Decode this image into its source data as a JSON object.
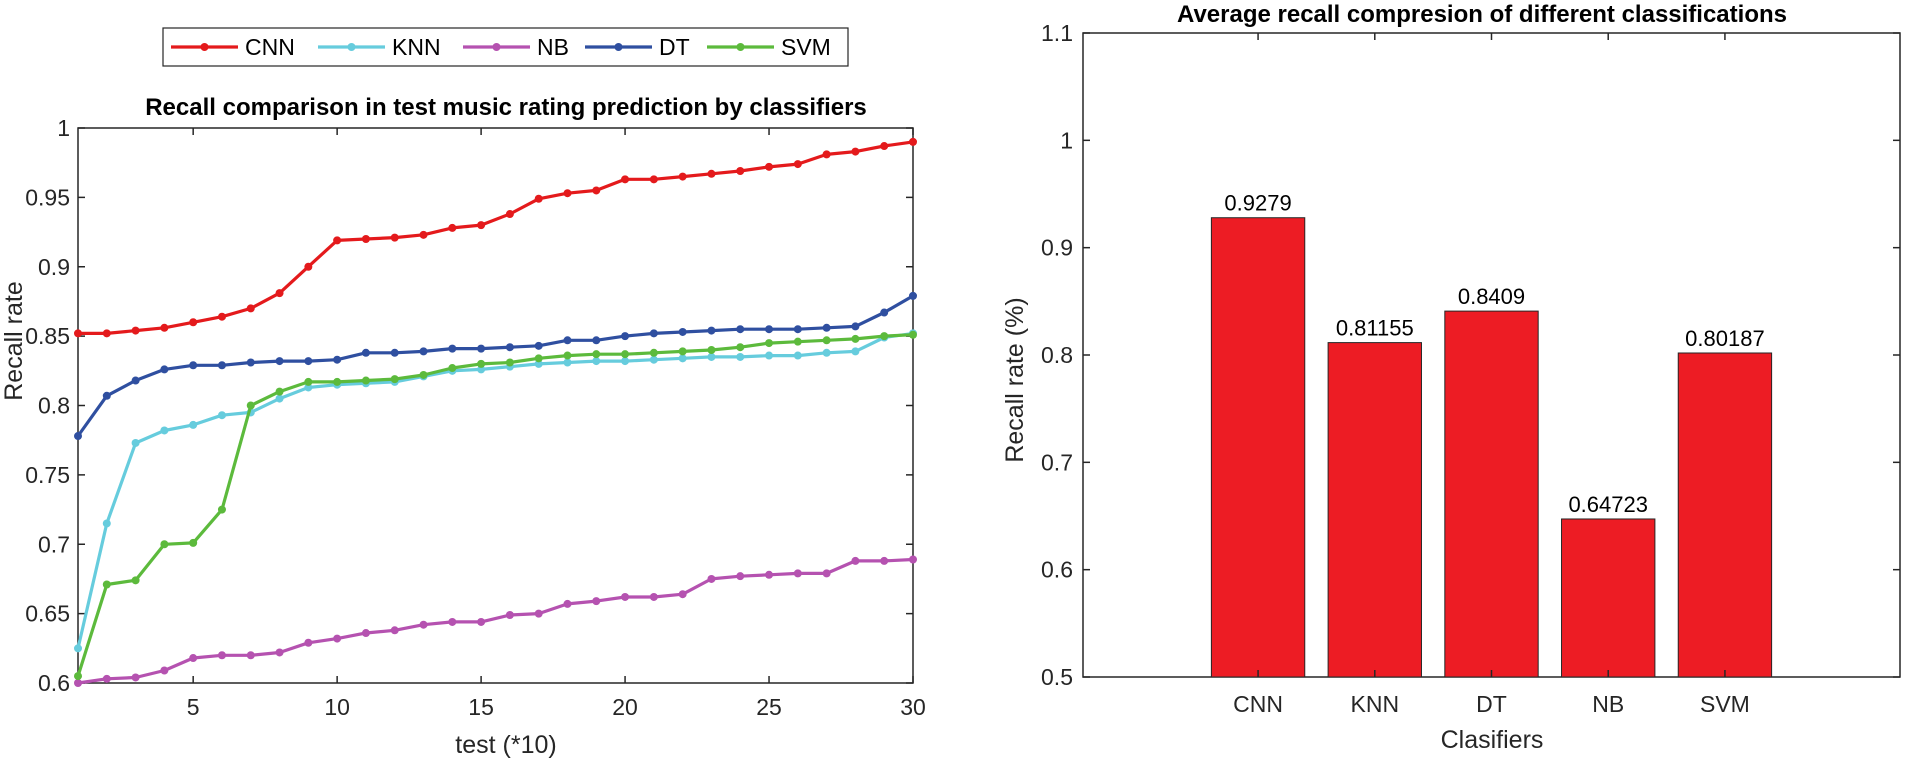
{
  "chart_data": [
    {
      "type": "line",
      "title": "Recall comparison in test music rating prediction by classifiers",
      "xlabel": "test (*10)",
      "ylabel": "Recall rate",
      "xlim": [
        1,
        30
      ],
      "ylim": [
        0.6,
        1.0
      ],
      "xticks": [
        5,
        10,
        15,
        20,
        25,
        30
      ],
      "xtick_labels": [
        "5",
        "10",
        "15",
        "20",
        "25",
        "30"
      ],
      "yticks": [
        0.6,
        0.65,
        0.7,
        0.75,
        0.8,
        0.85,
        0.9,
        0.95,
        1.0
      ],
      "ytick_labels": [
        "0.6",
        "0.65",
        "0.7",
        "0.75",
        "0.8",
        "0.85",
        "0.9",
        "0.95",
        "1"
      ],
      "legend_position": "top, outside, horizontal",
      "grid": false,
      "x": [
        1,
        2,
        3,
        4,
        5,
        6,
        7,
        8,
        9,
        10,
        11,
        12,
        13,
        14,
        15,
        16,
        17,
        18,
        19,
        20,
        21,
        22,
        23,
        24,
        25,
        26,
        27,
        28,
        29,
        30
      ],
      "series": [
        {
          "name": "CNN",
          "color": "#e41a1c",
          "values": [
            0.852,
            0.852,
            0.854,
            0.856,
            0.86,
            0.864,
            0.87,
            0.881,
            0.9,
            0.919,
            0.92,
            0.921,
            0.923,
            0.928,
            0.93,
            0.938,
            0.949,
            0.953,
            0.955,
            0.963,
            0.963,
            0.965,
            0.967,
            0.969,
            0.972,
            0.974,
            0.981,
            0.983,
            0.987,
            0.99
          ]
        },
        {
          "name": "KNN",
          "color": "#66ccdd",
          "values": [
            0.625,
            0.715,
            0.773,
            0.782,
            0.786,
            0.793,
            0.795,
            0.805,
            0.813,
            0.815,
            0.816,
            0.817,
            0.821,
            0.825,
            0.826,
            0.828,
            0.83,
            0.831,
            0.832,
            0.832,
            0.833,
            0.834,
            0.835,
            0.835,
            0.836,
            0.836,
            0.838,
            0.839,
            0.849,
            0.852
          ]
        },
        {
          "name": "NB",
          "color": "#b552b0",
          "values": [
            0.6,
            0.603,
            0.604,
            0.609,
            0.618,
            0.62,
            0.62,
            0.622,
            0.629,
            0.632,
            0.636,
            0.638,
            0.642,
            0.644,
            0.644,
            0.649,
            0.65,
            0.657,
            0.659,
            0.662,
            0.662,
            0.664,
            0.675,
            0.677,
            0.678,
            0.679,
            0.679,
            0.688,
            0.688,
            0.689
          ]
        },
        {
          "name": "DT",
          "color": "#2f4fa0",
          "values": [
            0.778,
            0.807,
            0.818,
            0.826,
            0.829,
            0.829,
            0.831,
            0.832,
            0.832,
            0.833,
            0.838,
            0.838,
            0.839,
            0.841,
            0.841,
            0.842,
            0.843,
            0.847,
            0.847,
            0.85,
            0.852,
            0.853,
            0.854,
            0.855,
            0.855,
            0.855,
            0.856,
            0.857,
            0.867,
            0.879
          ]
        },
        {
          "name": "SVM",
          "color": "#5cba3c",
          "values": [
            0.605,
            0.671,
            0.674,
            0.7,
            0.701,
            0.725,
            0.8,
            0.81,
            0.817,
            0.817,
            0.818,
            0.819,
            0.822,
            0.827,
            0.83,
            0.831,
            0.834,
            0.836,
            0.837,
            0.837,
            0.838,
            0.839,
            0.84,
            0.842,
            0.845,
            0.846,
            0.847,
            0.848,
            0.85,
            0.851
          ]
        }
      ]
    },
    {
      "type": "bar",
      "title": "Average recall compresion of different classifications",
      "xlabel": "Clasifiers",
      "ylabel": "Recall rate (%)",
      "ylim": [
        0.5,
        1.1
      ],
      "yticks": [
        0.5,
        0.6,
        0.7,
        0.8,
        0.9,
        1.0,
        1.1
      ],
      "ytick_labels": [
        "0.5",
        "0.6",
        "0.7",
        "0.8",
        "0.9",
        "1",
        "1.1"
      ],
      "grid": false,
      "bar_color": "#ed1c24",
      "categories": [
        "CNN",
        "KNN",
        "DT",
        "NB",
        "SVM"
      ],
      "values": [
        0.9279,
        0.81155,
        0.8409,
        0.64723,
        0.80187
      ],
      "value_labels": [
        "0.9279",
        "0.81155",
        "0.8409",
        "0.64723",
        "0.80187"
      ]
    }
  ]
}
